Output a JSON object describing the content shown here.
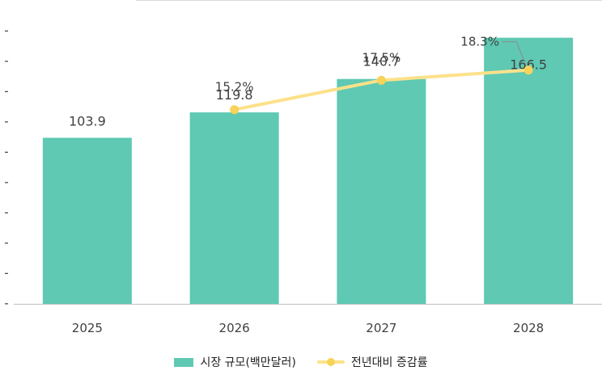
{
  "colors": {
    "bar": "#5fc9b3",
    "line": "#fde18a",
    "marker": "#f7d35a",
    "axis": "#bfbfbf",
    "leader": "#8c8c8c",
    "text": "#404040"
  },
  "chart_data": {
    "type": "bar",
    "title": "",
    "categories": [
      "2025",
      "2026",
      "2027",
      "2028"
    ],
    "series": [
      {
        "name": "시장 규모(백만달러)",
        "type": "bar",
        "values": [
          103.9,
          119.8,
          140.7,
          166.5
        ],
        "labels": [
          "103.9",
          "119.8",
          "140.7",
          "166.5"
        ]
      },
      {
        "name": "전년대비 증감률",
        "type": "line",
        "values": [
          null,
          15.2,
          17.5,
          18.3
        ],
        "labels": [
          null,
          "15.2%",
          "17.5%",
          "18.3%"
        ]
      }
    ],
    "ylim": [
      0,
      180
    ],
    "y2lim": [
      0,
      21
    ],
    "y_tick_labels": [
      "-",
      "-",
      "-",
      "-",
      "-",
      "-",
      "-",
      "-",
      "-",
      "-"
    ],
    "legend_position": "bottom",
    "xlabel": "",
    "ylabel": ""
  },
  "legend": {
    "bar_label": "시장 규모(백만달러)",
    "line_label": "전년대비 증감률"
  }
}
